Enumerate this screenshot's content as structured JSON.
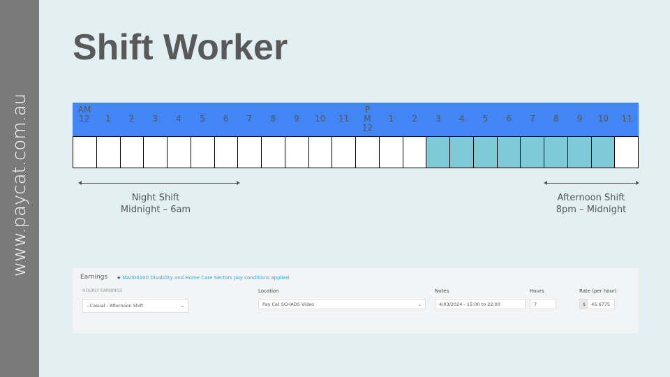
{
  "sidebar": {
    "website": "www.paycat.com.au"
  },
  "title": "Shift Worker",
  "timeline": {
    "hours": [
      [
        "AM",
        "12"
      ],
      [
        "",
        "1"
      ],
      [
        "",
        "2"
      ],
      [
        "",
        "3"
      ],
      [
        "",
        "4"
      ],
      [
        "",
        "5"
      ],
      [
        "",
        "6"
      ],
      [
        "",
        "7"
      ],
      [
        "",
        "8"
      ],
      [
        "",
        "9"
      ],
      [
        "",
        "10"
      ],
      [
        "",
        "11"
      ],
      [
        "P",
        "M",
        "12"
      ],
      [
        "",
        "1"
      ],
      [
        "",
        "2"
      ],
      [
        "",
        "3"
      ],
      [
        "",
        "4"
      ],
      [
        "",
        "5"
      ],
      [
        "",
        "6"
      ],
      [
        "",
        "7"
      ],
      [
        "",
        "8"
      ],
      [
        "",
        "9"
      ],
      [
        "",
        "10"
      ],
      [
        "",
        "11"
      ]
    ],
    "highlighted_hours": [
      15,
      16,
      17,
      18,
      19,
      20,
      21,
      22
    ],
    "highlight_color": "#7ecad6",
    "header_color": "#4285f4"
  },
  "annotations": {
    "night": {
      "line1": "Night Shift",
      "line2": "Midnight – 6am"
    },
    "afternoon": {
      "line1": "Afternoon Shift",
      "line2": "8pm – Midnight"
    }
  },
  "earnings": {
    "heading": "Earnings",
    "notice": "MA000100 Disability and Home Care Sectors pay conditions applied",
    "hourly_label": "HOURLY EARNINGS",
    "hourly_value": "--Casual - Afternoon Shift",
    "location_label": "Location",
    "location_value": "Pay Cat SCHADS Video",
    "notes_label": "Notes",
    "notes_value": "4/03/2024 - 15:00 to 22:00",
    "hours_label": "Hours",
    "hours_value": "7",
    "rate_label": "Rate (per hour)",
    "rate_currency": "$",
    "rate_value": "45.6775"
  }
}
